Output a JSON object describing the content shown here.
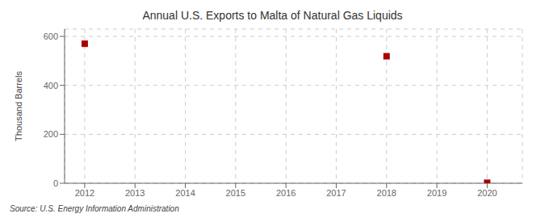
{
  "chart_data": {
    "type": "scatter",
    "title": "Annual U.S. Exports to Malta of Natural Gas Liquids",
    "y_label": "Thousand Barrels",
    "source": "Source: U.S. Energy Information Administration",
    "x": [
      2012,
      2013,
      2014,
      2015,
      2016,
      2017,
      2018,
      2019,
      2020
    ],
    "values": [
      570,
      null,
      null,
      null,
      null,
      null,
      519,
      null,
      2
    ],
    "color": "#aa0000",
    "marker": "square",
    "xlim": [
      2011.6,
      2020.7
    ],
    "xticks": [
      2012,
      2013,
      2014,
      2015,
      2016,
      2017,
      2018,
      2019,
      2020
    ],
    "ylim": [
      0,
      630
    ],
    "yticks": [
      0,
      200,
      400,
      600
    ],
    "grid": true
  }
}
